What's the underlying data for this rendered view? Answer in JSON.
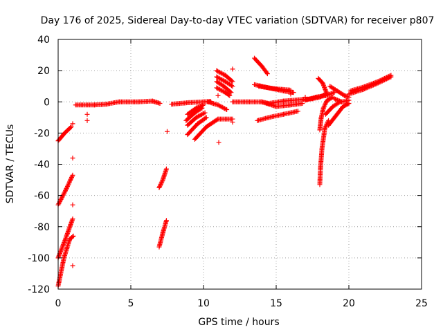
{
  "colors": {
    "series": "#ff0000",
    "grid": "#a0a0a0",
    "axis": "#000000"
  },
  "chart_data": {
    "type": "scatter",
    "title": "Day 176 of 2025, Sidereal Day-to-day VTEC variation (SDTVAR) for receiver p807",
    "xlabel": "GPS time / hours",
    "ylabel": "SDTVAR / TECUs",
    "xlim": [
      0,
      25
    ],
    "ylim": [
      -120,
      40
    ],
    "xticks": [
      0,
      5,
      10,
      15,
      20,
      25
    ],
    "yticks": [
      -120,
      -100,
      -80,
      -60,
      -40,
      -20,
      0,
      20,
      40
    ],
    "grid": true,
    "marker": "+",
    "series": [
      {
        "name": "SDTVAR",
        "segments": [
          [
            [
              0.0,
              -25
            ],
            [
              0.45,
              -20
            ],
            [
              0.9,
              -16
            ]
          ],
          [
            [
              0.0,
              -66
            ],
            [
              0.5,
              -57
            ],
            [
              1.0,
              -47
            ]
          ],
          [
            [
              0.0,
              -100
            ],
            [
              0.5,
              -88
            ],
            [
              1.0,
              -75
            ]
          ],
          [
            [
              0.0,
              -118
            ],
            [
              0.4,
              -100
            ],
            [
              0.8,
              -88
            ],
            [
              1.05,
              -86
            ]
          ],
          [
            [
              1.2,
              -2
            ],
            [
              2.5,
              -2
            ],
            [
              3.3,
              -1.5
            ],
            [
              4.2,
              0
            ],
            [
              5.5,
              0
            ],
            [
              6.5,
              0.5
            ],
            [
              7.0,
              -1
            ]
          ],
          [
            [
              6.95,
              -55
            ],
            [
              7.2,
              -50
            ],
            [
              7.45,
              -43
            ]
          ],
          [
            [
              6.95,
              -93
            ],
            [
              7.2,
              -84
            ],
            [
              7.45,
              -76
            ]
          ],
          [
            [
              7.8,
              -1.5
            ],
            [
              9.0,
              -0.5
            ],
            [
              10.0,
              0
            ],
            [
              10.5,
              0.3
            ]
          ],
          [
            [
              8.9,
              -21
            ],
            [
              9.6,
              -14
            ],
            [
              10.2,
              -10
            ]
          ],
          [
            [
              8.9,
              -15
            ],
            [
              9.5,
              -10
            ],
            [
              10.1,
              -7
            ]
          ],
          [
            [
              8.9,
              -8
            ],
            [
              9.5,
              -4
            ],
            [
              10.0,
              -2
            ]
          ],
          [
            [
              9.4,
              -24
            ],
            [
              10.2,
              -16
            ],
            [
              11.0,
              -11
            ],
            [
              12.0,
              -11
            ]
          ],
          [
            [
              8.8,
              -12
            ],
            [
              9.4,
              -7
            ],
            [
              9.9,
              -4
            ]
          ],
          [
            [
              10.3,
              0
            ],
            [
              11.0,
              -2
            ],
            [
              11.6,
              -5
            ]
          ],
          [
            [
              10.9,
              20
            ],
            [
              11.5,
              17
            ],
            [
              12.0,
              13
            ]
          ],
          [
            [
              10.9,
              16
            ],
            [
              11.5,
              13
            ],
            [
              12.0,
              10
            ]
          ],
          [
            [
              10.9,
              13
            ],
            [
              11.4,
              10
            ],
            [
              11.9,
              6
            ]
          ],
          [
            [
              10.9,
              9
            ],
            [
              11.5,
              6
            ],
            [
              11.8,
              4
            ]
          ],
          [
            [
              12.0,
              0
            ],
            [
              13.0,
              0
            ],
            [
              14.0,
              0
            ],
            [
              14.5,
              -1
            ],
            [
              15.5,
              0.5
            ],
            [
              16.8,
              1.5
            ],
            [
              17.5,
              2
            ],
            [
              18.0,
              3
            ],
            [
              18.4,
              5
            ]
          ],
          [
            [
              13.5,
              28
            ],
            [
              14.0,
              23
            ],
            [
              14.4,
              18
            ]
          ],
          [
            [
              13.5,
              11
            ],
            [
              14.5,
              9
            ],
            [
              15.5,
              7
            ],
            [
              16.2,
              6
            ]
          ],
          [
            [
              13.8,
              10
            ],
            [
              14.8,
              8.5
            ],
            [
              16.0,
              7.5
            ]
          ],
          [
            [
              13.7,
              -12
            ],
            [
              14.5,
              -10
            ],
            [
              15.5,
              -8
            ],
            [
              16.5,
              -6
            ]
          ],
          [
            [
              14.0,
              0
            ],
            [
              15.0,
              -3
            ],
            [
              16.0,
              -2
            ],
            [
              16.8,
              -1
            ]
          ],
          [
            [
              17.0,
              1
            ],
            [
              17.7,
              3
            ],
            [
              18.4,
              4
            ],
            [
              19.0,
              6
            ]
          ],
          [
            [
              18.0,
              -53
            ],
            [
              18.05,
              -42
            ],
            [
              18.15,
              -30
            ],
            [
              18.35,
              -17
            ],
            [
              18.6,
              -12
            ]
          ],
          [
            [
              18.0,
              -18
            ],
            [
              18.1,
              -10
            ],
            [
              18.25,
              -4
            ],
            [
              18.5,
              1
            ],
            [
              18.9,
              3
            ]
          ],
          [
            [
              17.9,
              15
            ],
            [
              18.2,
              12
            ],
            [
              18.5,
              5
            ]
          ],
          [
            [
              18.4,
              -8
            ],
            [
              18.9,
              -3
            ],
            [
              19.4,
              0
            ]
          ],
          [
            [
              18.6,
              -15
            ],
            [
              19.1,
              -9
            ],
            [
              19.6,
              -3
            ],
            [
              20.0,
              -1
            ]
          ],
          [
            [
              18.7,
              10
            ],
            [
              19.2,
              7
            ],
            [
              19.7,
              4
            ],
            [
              20.0,
              3
            ]
          ],
          [
            [
              19.0,
              2
            ],
            [
              19.5,
              0
            ],
            [
              20.0,
              1
            ]
          ],
          [
            [
              20.0,
              5
            ],
            [
              21.0,
              8
            ],
            [
              22.0,
              12
            ],
            [
              22.9,
              16
            ]
          ],
          [
            [
              20.1,
              7
            ],
            [
              21.0,
              9.5
            ],
            [
              22.0,
              13
            ],
            [
              22.9,
              17
            ]
          ]
        ],
        "isolated_points": [
          [
            1.0,
            -14
          ],
          [
            1.0,
            -36
          ],
          [
            1.0,
            -66
          ],
          [
            1.0,
            -105
          ],
          [
            2.0,
            -8
          ],
          [
            2.0,
            -12
          ],
          [
            7.5,
            -19
          ],
          [
            11.0,
            4
          ],
          [
            11.05,
            -26
          ],
          [
            12.0,
            21
          ],
          [
            12.0,
            -13
          ],
          [
            16.0,
            5
          ],
          [
            17.0,
            3
          ]
        ]
      }
    ]
  }
}
